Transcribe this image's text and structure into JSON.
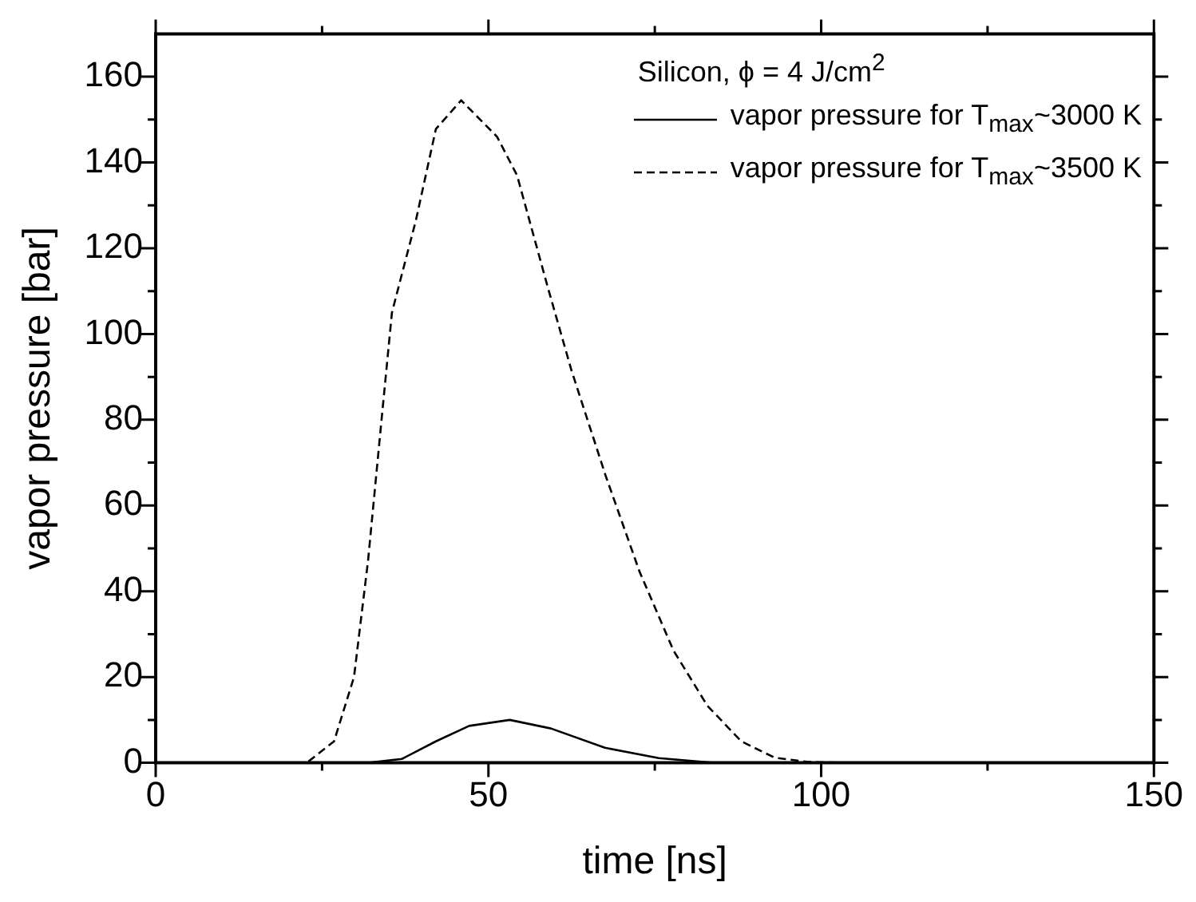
{
  "chart_data": {
    "type": "line",
    "xlabel": "time [ns]",
    "ylabel": "vapor pressure [bar]",
    "legend_title": "Silicon, ϕ = 4 J/cm$^{2}$",
    "legend": "top right",
    "grid": false,
    "marker": "none",
    "xlim": [
      0,
      150
    ],
    "xticks": [
      0,
      {
        "value": 25,
        "label": null
      },
      50,
      {
        "value": 75,
        "label": null
      },
      100,
      {
        "value": 125,
        "label": null
      },
      150
    ],
    "ylim": [
      0,
      170
    ],
    "yticks": [
      0,
      {
        "value": 10,
        "label": null
      },
      20,
      {
        "value": 30,
        "label": null
      },
      40,
      {
        "value": 50,
        "label": null
      },
      60,
      {
        "value": 70,
        "label": null
      },
      80,
      {
        "value": 90,
        "label": null
      },
      100,
      {
        "value": 110,
        "label": null
      },
      120,
      {
        "value": 130,
        "label": null
      },
      140,
      {
        "value": 150,
        "label": null
      },
      160
    ],
    "series": [
      {
        "name": "vapor pressure for T$_{max}$~3000 K",
        "color": "#000000",
        "line_style": "solid",
        "x": [
          0,
          31.9,
          37,
          42.1,
          47.1,
          53.2,
          59.4,
          67.5,
          75.6,
          83.8,
          150
        ],
        "values": [
          0,
          0,
          0.9,
          5,
          8.6,
          10,
          8,
          3.5,
          1.1,
          0,
          0
        ]
      },
      {
        "name": "vapor pressure for T$_{max}$~3500 K",
        "color": "#000000",
        "line_style": "dashed",
        "x": [
          0,
          22.7,
          26.8,
          29.8,
          31.9,
          34,
          35.5,
          36.5,
          39.1,
          42.1,
          45.9,
          51.3,
          54.3,
          58.9,
          60,
          62.5,
          67.6,
          72.7,
          77.8,
          82.9,
          88,
          93,
          98.1,
          103.2,
          150
        ],
        "values": [
          0,
          0,
          5,
          20,
          47,
          81,
          105,
          111,
          126.5,
          147.8,
          154.5,
          146,
          137,
          111,
          105,
          91.4,
          67,
          44.6,
          26.2,
          13.3,
          5,
          1.2,
          0.2,
          0,
          0
        ]
      }
    ]
  }
}
